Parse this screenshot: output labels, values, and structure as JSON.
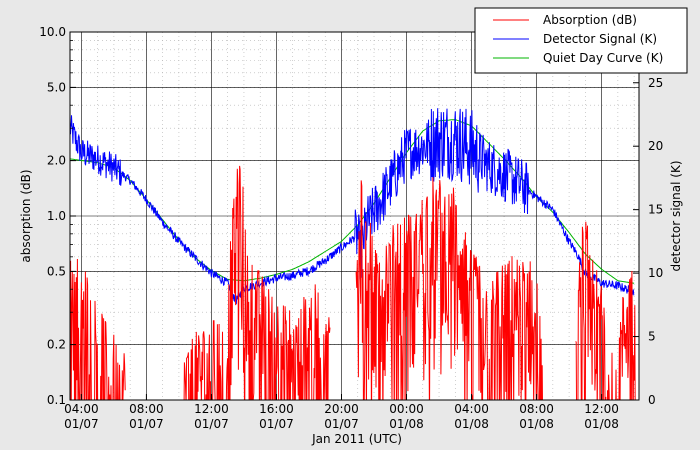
{
  "chart_data": {
    "type": "line",
    "xlabel": "Jan 2011 (UTC)",
    "ylabel_left": "absorption (dB)",
    "ylabel_right": "detector signal (K)",
    "x_unit": "hours since 2011-01-07 00:00 UTC",
    "xlim": [
      3.3,
      38.3
    ],
    "y_left": {
      "scale": "log",
      "lim": [
        0.1,
        10.0
      ]
    },
    "y_right": {
      "scale": "linear",
      "lim": [
        0,
        29
      ]
    },
    "x_ticks": [
      {
        "x": 4,
        "time": "04:00",
        "date": "01/07"
      },
      {
        "x": 8,
        "time": "08:00",
        "date": "01/07"
      },
      {
        "x": 12,
        "time": "12:00",
        "date": "01/07"
      },
      {
        "x": 16,
        "time": "16:00",
        "date": "01/07"
      },
      {
        "x": 20,
        "time": "20:00",
        "date": "01/07"
      },
      {
        "x": 24,
        "time": "00:00",
        "date": "01/08"
      },
      {
        "x": 28,
        "time": "04:00",
        "date": "01/08"
      },
      {
        "x": 32,
        "time": "08:00",
        "date": "01/08"
      },
      {
        "x": 36,
        "time": "12:00",
        "date": "01/08"
      }
    ],
    "y_left_ticks": [
      {
        "v": 0.1,
        "label": "0.1"
      },
      {
        "v": 0.2,
        "label": "0.2"
      },
      {
        "v": 0.5,
        "label": "0.5"
      },
      {
        "v": 1.0,
        "label": "1.0"
      },
      {
        "v": 2.0,
        "label": "2.0"
      },
      {
        "v": 5.0,
        "label": "5.0"
      },
      {
        "v": 10.0,
        "label": "10.0"
      }
    ],
    "y_right_ticks": [
      {
        "v": 0,
        "label": "0"
      },
      {
        "v": 5,
        "label": "5"
      },
      {
        "v": 10,
        "label": "10"
      },
      {
        "v": 15,
        "label": "15"
      },
      {
        "v": 20,
        "label": "20"
      },
      {
        "v": 25,
        "label": "25"
      }
    ],
    "grid": true,
    "legend_position": "top-right",
    "series": [
      {
        "name": "Absorption (dB)",
        "color": "#ff0000",
        "axis": "left",
        "x": [
          3.3,
          3.6,
          4.0,
          4.4,
          4.8,
          5.2,
          5.6,
          6.2,
          6.6,
          10.3,
          11.0,
          11.8,
          12.4,
          13.0,
          13.4,
          13.6,
          13.9,
          14.2,
          14.8,
          15.4,
          16.2,
          16.8,
          17.3,
          17.8,
          18.5,
          19.1,
          21.0,
          21.2,
          21.5,
          22.0,
          22.5,
          23.0,
          23.5,
          24.0,
          24.5,
          25.0,
          25.5,
          26.0,
          26.5,
          27.0,
          27.5,
          28.0,
          28.5,
          29.0,
          29.5,
          30.0,
          30.5,
          31.0,
          31.5,
          32.0,
          32.3,
          34.5,
          34.8,
          35.2,
          35.6,
          36.0,
          36.4,
          36.8,
          37.2,
          37.6,
          38.0
        ],
        "y": [
          0.33,
          0.42,
          0.34,
          0.27,
          0.22,
          0.18,
          0.14,
          0.12,
          0.11,
          0.11,
          0.13,
          0.15,
          0.16,
          0.17,
          0.75,
          1.2,
          0.9,
          0.35,
          0.3,
          0.24,
          0.2,
          0.18,
          0.16,
          0.22,
          0.24,
          0.15,
          0.5,
          1.1,
          0.6,
          0.45,
          0.42,
          0.5,
          0.55,
          0.6,
          0.55,
          0.75,
          0.95,
          0.9,
          0.85,
          0.8,
          0.5,
          0.35,
          0.33,
          0.25,
          0.32,
          0.3,
          0.35,
          0.32,
          0.34,
          0.28,
          0.12,
          0.12,
          0.55,
          0.5,
          0.3,
          0.25,
          0.15,
          0.12,
          0.18,
          0.3,
          0.33
        ]
      },
      {
        "name": "Detector Signal (K)",
        "color": "#0000ff",
        "axis": "right",
        "x": [
          3.3,
          4.0,
          5.0,
          6.0,
          7.0,
          8.0,
          9.0,
          10.0,
          11.0,
          12.0,
          13.0,
          13.5,
          14.0,
          15.0,
          16.0,
          17.0,
          18.0,
          19.0,
          20.0,
          21.0,
          21.2,
          21.5,
          22.0,
          23.0,
          24.0,
          25.0,
          26.0,
          27.0,
          28.0,
          29.0,
          30.0,
          31.0,
          32.0,
          33.0,
          34.0,
          34.5,
          35.0,
          36.0,
          37.0,
          38.0
        ],
        "y": [
          21.5,
          19.5,
          19.0,
          18.3,
          17.3,
          15.8,
          14.0,
          12.5,
          11.2,
          10.0,
          9.2,
          7.8,
          8.8,
          9.2,
          9.6,
          9.8,
          10.2,
          11.0,
          12.0,
          13.0,
          11.2,
          13.8,
          14.8,
          17.0,
          19.5,
          20.0,
          20.5,
          20.5,
          19.8,
          18.5,
          17.8,
          17.0,
          16.0,
          15.0,
          12.5,
          11.5,
          10.0,
          9.2,
          9.0,
          8.5
        ]
      },
      {
        "name": "Quiet Day Curve (K)",
        "color": "#00b400",
        "axis": "right",
        "x": [
          3.3,
          5.0,
          6.0,
          7.0,
          8.0,
          9.0,
          10.0,
          11.0,
          12.0,
          13.0,
          14.0,
          15.0,
          16.0,
          17.0,
          18.0,
          19.0,
          20.0,
          21.0,
          22.0,
          23.0,
          24.0,
          25.0,
          26.0,
          27.0,
          28.0,
          29.0,
          30.0,
          31.0,
          32.0,
          33.0,
          34.0,
          35.0,
          36.0,
          37.0,
          38.0
        ],
        "y": [
          19.0,
          18.7,
          18.3,
          17.3,
          15.8,
          14.2,
          12.6,
          11.2,
          10.2,
          9.5,
          9.4,
          9.6,
          9.9,
          10.3,
          10.9,
          11.7,
          12.5,
          13.8,
          15.5,
          17.5,
          19.5,
          21.2,
          22.0,
          22.1,
          21.6,
          20.3,
          19.0,
          17.6,
          16.0,
          14.8,
          13.2,
          11.5,
          10.3,
          9.4,
          9.2
        ]
      }
    ]
  }
}
